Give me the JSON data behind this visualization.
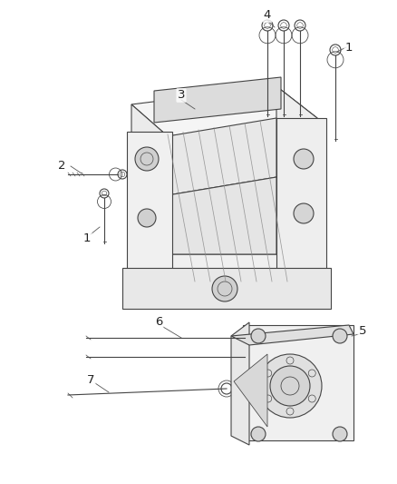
{
  "bg_color": "#ffffff",
  "line_color": "#444444",
  "fig_width": 4.38,
  "fig_height": 5.33,
  "dpi": 100,
  "label_fontsize": 9.5,
  "label_color": "#222222"
}
